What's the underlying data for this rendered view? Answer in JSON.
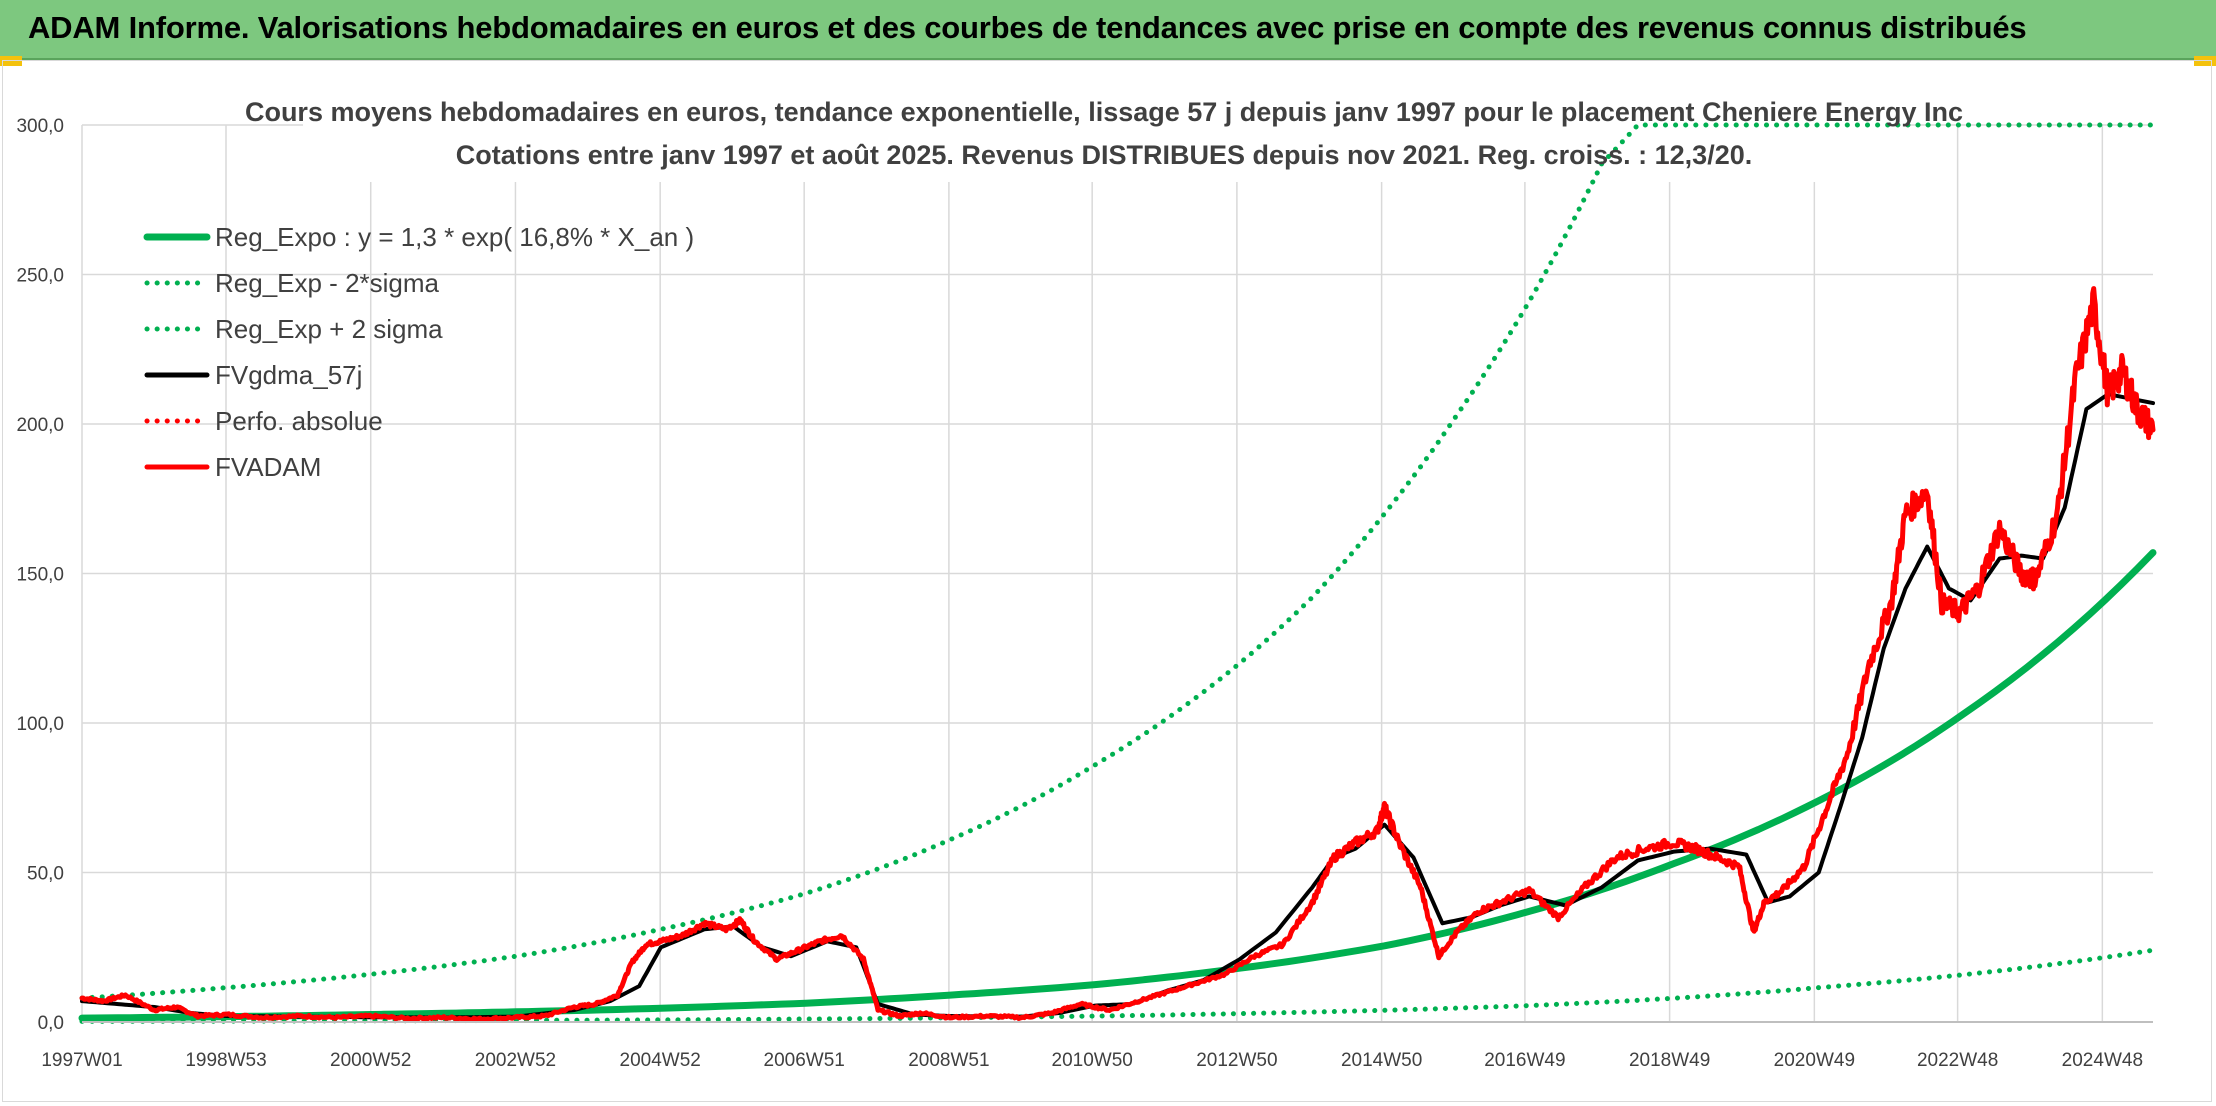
{
  "banner": {
    "title": "ADAM Informe. Valorisations hebdomadaires en euros et des courbes de tendances avec prise en compte des revenus connus distribués"
  },
  "colors": {
    "banner_bg": "#7dc87f",
    "green": "#00b050",
    "red": "#ff0000",
    "black": "#000000",
    "grid": "#d9d9d9"
  },
  "chart_data": {
    "type": "line",
    "title": "Cours moyens hebdomadaires en euros, tendance exponentielle, lissage 57 j depuis janv 1997 pour le placement Cheniere Energy Inc",
    "subtitle": "Cotations entre janv 1997 et août 2025. Revenus DISTRIBUES depuis nov 2021. Reg. croiss. : 12,3/20.",
    "ylim": [
      0,
      300
    ],
    "y_ticks": [
      "0,0",
      "50,0",
      "100,0",
      "150,0",
      "200,0",
      "250,0",
      "300,0"
    ],
    "xlim": [
      1997.0,
      2025.62
    ],
    "x_ticks": [
      {
        "label": "1997W01",
        "x": 1997.0
      },
      {
        "label": "1998W53",
        "x": 1998.99
      },
      {
        "label": "2000W52",
        "x": 2000.99
      },
      {
        "label": "2002W52",
        "x": 2002.99
      },
      {
        "label": "2004W52",
        "x": 2004.99
      },
      {
        "label": "2006W51",
        "x": 2006.98
      },
      {
        "label": "2008W51",
        "x": 2008.98
      },
      {
        "label": "2010W50",
        "x": 2010.96
      },
      {
        "label": "2012W50",
        "x": 2012.96
      },
      {
        "label": "2014W50",
        "x": 2014.96
      },
      {
        "label": "2016W49",
        "x": 2016.94
      },
      {
        "label": "2018W49",
        "x": 2018.94
      },
      {
        "label": "2020W49",
        "x": 2020.94
      },
      {
        "label": "2022W48",
        "x": 2022.92
      },
      {
        "label": "2024W48",
        "x": 2024.92
      }
    ],
    "legend": [
      {
        "name": "Reg_Expo : y = 1,3 * exp( 16,8% *  X_an )",
        "color": "#00b050",
        "style": "solid"
      },
      {
        "name": "Reg_Exp - 2*sigma",
        "color": "#00b050",
        "style": "dotted"
      },
      {
        "name": "Reg_Exp + 2 sigma",
        "color": "#00b050",
        "style": "dotted"
      },
      {
        "name": "FVgdma_57j",
        "color": "#000000",
        "style": "solid"
      },
      {
        "name": "Perfo. absolue",
        "color": "#ff0000",
        "style": "dotted"
      },
      {
        "name": "FVADAM",
        "color": "#ff0000",
        "style": "solid"
      }
    ],
    "legend_position": "top-left",
    "grid": true,
    "series": [
      {
        "name": "Reg_Expo : y = 1,3 * exp( 16,8% *  X_an )",
        "x": [
          1997.0,
          1999.0,
          2001.0,
          2003.0,
          2005.0,
          2007.0,
          2009.0,
          2011.0,
          2013.0,
          2015.0,
          2017.0,
          2019.0,
          2021.0,
          2023.0,
          2025.62
        ],
        "values": [
          1.3,
          1.8,
          2.5,
          3.4,
          4.6,
          6.3,
          9.0,
          12.5,
          18.0,
          25.5,
          37.0,
          53.0,
          74.0,
          103.0,
          157.0
        ]
      },
      {
        "name": "Reg_Exp - 2*sigma",
        "x": [
          1997.0,
          2001.0,
          2005.0,
          2009.0,
          2013.0,
          2017.0,
          2021.0,
          2025.62
        ],
        "values": [
          0.2,
          0.4,
          0.7,
          1.4,
          2.8,
          5.5,
          11.5,
          24.0
        ]
      },
      {
        "name": "Reg_Exp + 2 sigma",
        "x": [
          1997.0,
          1999.0,
          2001.0,
          2003.0,
          2005.0,
          2007.0,
          2009.0,
          2011.0,
          2013.0,
          2014.0,
          2015.0,
          2016.0,
          2017.0,
          2018.0,
          2018.5,
          2025.62
        ],
        "values": [
          8.0,
          11.5,
          16.0,
          22.0,
          31.0,
          43.0,
          61.0,
          86.0,
          120.0,
          142.0,
          170.0,
          203.0,
          241.0,
          287.0,
          300.0,
          300.0
        ]
      },
      {
        "name": "FVgdma_57j",
        "x": [
          1997.0,
          1997.5,
          1998.0,
          1998.5,
          1999.0,
          2000.0,
          2001.0,
          2002.0,
          2003.0,
          2003.8,
          2004.3,
          2004.7,
          2005.0,
          2005.6,
          2006.0,
          2006.4,
          2006.8,
          2007.3,
          2007.7,
          2008.0,
          2008.5,
          2009.0,
          2010.0,
          2010.5,
          2011.0,
          2011.5,
          2012.0,
          2012.5,
          2013.0,
          2013.5,
          2014.0,
          2014.3,
          2014.6,
          2015.0,
          2015.4,
          2015.8,
          2016.2,
          2016.6,
          2017.0,
          2017.5,
          2018.0,
          2018.5,
          2019.0,
          2019.5,
          2020.0,
          2020.3,
          2020.6,
          2021.0,
          2021.3,
          2021.6,
          2021.9,
          2022.2,
          2022.5,
          2022.8,
          2023.1,
          2023.5,
          2023.8,
          2024.1,
          2024.4,
          2024.7,
          2025.0,
          2025.62
        ],
        "values": [
          7.0,
          6.0,
          5.0,
          3.0,
          2.0,
          1.8,
          1.6,
          1.5,
          1.8,
          4.0,
          7.0,
          12.0,
          25.0,
          31.0,
          32.0,
          25.0,
          22.0,
          27.0,
          25.0,
          6.0,
          2.5,
          2.0,
          1.8,
          3.0,
          5.5,
          6.0,
          10.5,
          14.0,
          21.0,
          30.0,
          45.0,
          55.0,
          58.0,
          66.0,
          55.0,
          33.0,
          35.0,
          39.0,
          42.0,
          39.0,
          45.0,
          54.0,
          57.0,
          58.0,
          56.0,
          40.0,
          42.0,
          50.0,
          72.0,
          95.0,
          125.0,
          145.0,
          159.0,
          145.0,
          141.0,
          155.0,
          156.0,
          155.0,
          172.0,
          205.0,
          210.0,
          207.0
        ]
      },
      {
        "name": "FVADAM",
        "x": [
          1997.0,
          1997.3,
          1997.6,
          1998.0,
          1998.3,
          1998.6,
          1999.0,
          1999.5,
          2000.0,
          2000.5,
          2001.0,
          2001.5,
          2002.0,
          2002.5,
          2003.0,
          2003.4,
          2003.8,
          2004.1,
          2004.4,
          2004.6,
          2004.8,
          2005.0,
          2005.3,
          2005.6,
          2005.9,
          2006.1,
          2006.3,
          2006.6,
          2006.9,
          2007.2,
          2007.5,
          2007.8,
          2008.0,
          2008.3,
          2008.6,
          2009.0,
          2009.5,
          2010.0,
          2010.4,
          2010.8,
          2011.2,
          2011.6,
          2012.0,
          2012.4,
          2012.8,
          2013.2,
          2013.6,
          2014.0,
          2014.3,
          2014.6,
          2014.9,
          2015.0,
          2015.2,
          2015.5,
          2015.75,
          2016.0,
          2016.3,
          2016.6,
          2017.0,
          2017.4,
          2017.8,
          2018.2,
          2018.6,
          2019.0,
          2019.3,
          2019.6,
          2019.9,
          2020.1,
          2020.25,
          2020.5,
          2020.8,
          2021.1,
          2021.4,
          2021.7,
          2022.0,
          2022.2,
          2022.5,
          2022.7,
          2022.95,
          2023.2,
          2023.5,
          2023.8,
          2024.0,
          2024.3,
          2024.55,
          2024.8,
          2025.0,
          2025.2,
          2025.4,
          2025.62
        ],
        "values": [
          8.0,
          7.0,
          9.0,
          4.0,
          5.0,
          2.0,
          2.5,
          1.5,
          2.0,
          1.5,
          2.0,
          1.2,
          1.5,
          1.0,
          1.5,
          2.0,
          5.0,
          6.0,
          9.0,
          20.0,
          26.0,
          27.0,
          29.0,
          33.0,
          31.0,
          34.0,
          27.0,
          21.0,
          24.0,
          27.0,
          29.0,
          21.0,
          4.0,
          2.0,
          3.0,
          1.5,
          2.0,
          1.5,
          3.0,
          6.0,
          4.0,
          7.0,
          10.0,
          13.0,
          16.0,
          22.0,
          26.0,
          40.0,
          55.0,
          60.0,
          64.0,
          72.0,
          60.0,
          45.0,
          22.0,
          30.0,
          37.0,
          40.0,
          44.0,
          35.0,
          46.0,
          55.0,
          58.0,
          60.0,
          58.0,
          55.0,
          52.0,
          30.0,
          40.0,
          44.0,
          52.0,
          71.0,
          90.0,
          120.0,
          140.0,
          170.0,
          178.0,
          140.0,
          137.0,
          145.0,
          165.0,
          150.0,
          148.0,
          170.0,
          215.0,
          240.0,
          210.0,
          218.0,
          205.0,
          198.0
        ]
      }
    ]
  }
}
